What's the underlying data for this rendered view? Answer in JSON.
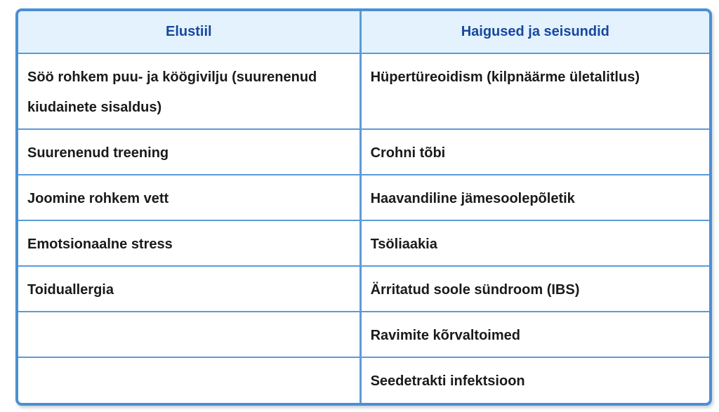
{
  "table": {
    "headers": {
      "lifestyle": "Elustiil",
      "conditions": "Haigused ja seisundid"
    },
    "rows": [
      [
        "Söö rohkem puu- ja köögivilju (suurenenud kiudainete sisaldus)",
        "Hüpertüreoidism (kilpnäärme ületalitlus)"
      ],
      [
        "Suurenenud treening",
        "Crohni tõbi"
      ],
      [
        "Joomine rohkem vett",
        "Haavandiline jämesoolepõletik"
      ],
      [
        "Emotsionaalne stress",
        "Tsöliaakia"
      ],
      [
        "Toiduallergia",
        "Ärritatud soole sündroom (IBS)"
      ],
      [
        "",
        "Ravimite kõrvaltoimed"
      ],
      [
        "",
        "Seedetrakti infektsioon"
      ]
    ],
    "colors": {
      "outer_border": "#4a90d5",
      "grid_line": "#5b9bd8",
      "header_background": "#e3f2fd",
      "header_text": "#17479e",
      "body_text": "#1a1a1a",
      "page_background": "#ffffff"
    }
  }
}
